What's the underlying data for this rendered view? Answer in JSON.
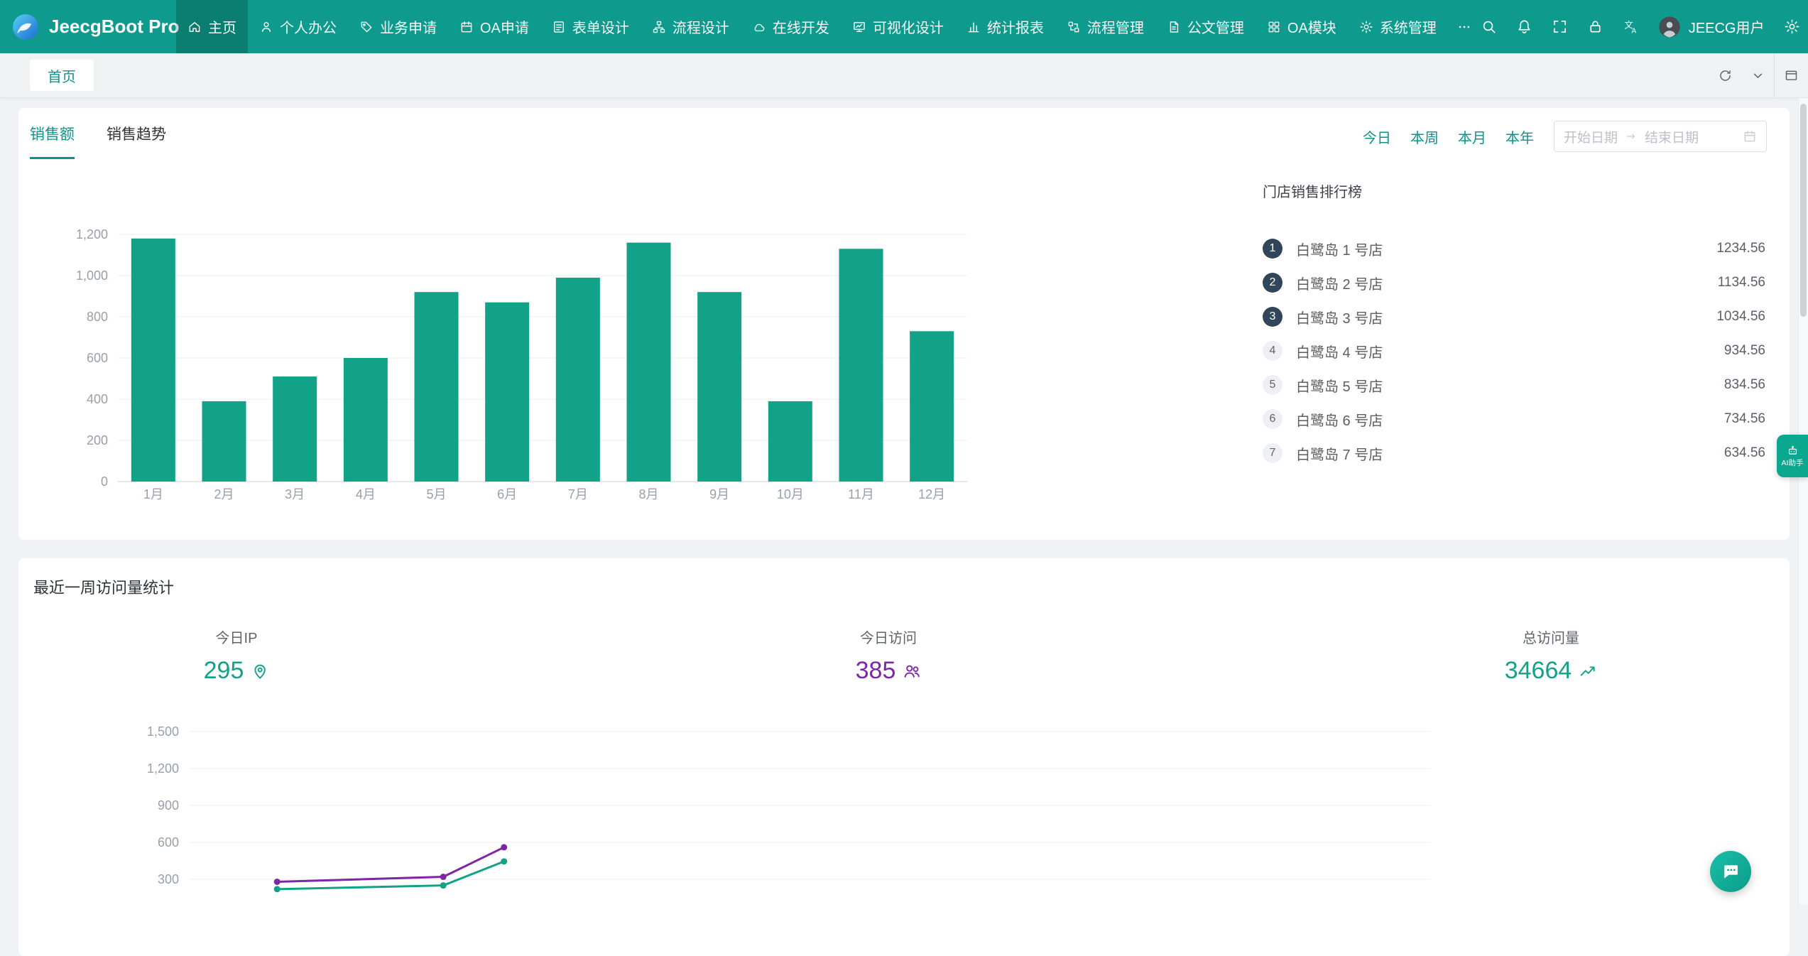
{
  "app": {
    "title": "JeecgBoot Pro"
  },
  "header": {
    "nav_items": [
      {
        "id": "home",
        "label": "主页",
        "icon": "home-icon",
        "active": true
      },
      {
        "id": "personal-office",
        "label": "个人办公",
        "icon": "user-icon",
        "active": false
      },
      {
        "id": "business-apply",
        "label": "业务申请",
        "icon": "tag-icon",
        "active": false
      },
      {
        "id": "oa-apply",
        "label": "OA申请",
        "icon": "calendar-icon",
        "active": false
      },
      {
        "id": "form-design",
        "label": "表单设计",
        "icon": "form-icon",
        "active": false
      },
      {
        "id": "flow-design",
        "label": "流程设计",
        "icon": "flow-icon",
        "active": false
      },
      {
        "id": "online-dev",
        "label": "在线开发",
        "icon": "cloud-icon",
        "active": false
      },
      {
        "id": "visual-design",
        "label": "可视化设计",
        "icon": "monitor-chart-icon",
        "active": false
      },
      {
        "id": "report",
        "label": "统计报表",
        "icon": "bar-chart-icon",
        "active": false
      },
      {
        "id": "flow-manage",
        "label": "流程管理",
        "icon": "deployment-icon",
        "active": false
      },
      {
        "id": "doc-manage",
        "label": "公文管理",
        "icon": "document-icon",
        "active": false
      },
      {
        "id": "oa-module",
        "label": "OA模块",
        "icon": "grid-icon",
        "active": false
      },
      {
        "id": "system-manage",
        "label": "系统管理",
        "icon": "gear-icon",
        "active": false
      },
      {
        "id": "more",
        "label": "",
        "icon": "more-icon",
        "active": false
      }
    ],
    "tools": [
      {
        "id": "search",
        "icon": "search-icon"
      },
      {
        "id": "notifications",
        "icon": "bell-icon"
      },
      {
        "id": "fullscreen",
        "icon": "fullscreen-icon"
      },
      {
        "id": "lock",
        "icon": "lock-icon"
      },
      {
        "id": "language",
        "icon": "translate-icon"
      }
    ],
    "user": {
      "name": "JEECG用户"
    }
  },
  "tabbar": {
    "tabs": [
      {
        "label": "首页",
        "active": true
      }
    ]
  },
  "sales_card": {
    "tabs": [
      {
        "label": "销售额",
        "active": true
      },
      {
        "label": "销售趋势",
        "active": false
      }
    ],
    "quick_ranges": [
      "今日",
      "本周",
      "本月",
      "本年"
    ],
    "date_picker": {
      "start_placeholder": "开始日期",
      "end_placeholder": "结束日期"
    },
    "ranking": {
      "title": "门店销售排行榜",
      "items": [
        {
          "rank": 1,
          "name": "白鹭岛 1 号店",
          "value": "1234.56"
        },
        {
          "rank": 2,
          "name": "白鹭岛 2 号店",
          "value": "1134.56"
        },
        {
          "rank": 3,
          "name": "白鹭岛 3 号店",
          "value": "1034.56"
        },
        {
          "rank": 4,
          "name": "白鹭岛 4 号店",
          "value": "934.56"
        },
        {
          "rank": 5,
          "name": "白鹭岛 5 号店",
          "value": "834.56"
        },
        {
          "rank": 6,
          "name": "白鹭岛 6 号店",
          "value": "734.56"
        },
        {
          "rank": 7,
          "name": "白鹭岛 7 号店",
          "value": "634.56"
        }
      ]
    }
  },
  "chart_data": [
    {
      "type": "bar",
      "title": "",
      "xlabel": "",
      "ylabel": "",
      "categories": [
        "1月",
        "2月",
        "3月",
        "4月",
        "5月",
        "6月",
        "7月",
        "8月",
        "9月",
        "10月",
        "11月",
        "12月"
      ],
      "values": [
        1180,
        390,
        510,
        600,
        920,
        870,
        990,
        1160,
        920,
        390,
        1130,
        730
      ],
      "ylim": [
        0,
        1200
      ],
      "yticks": [
        0,
        200,
        400,
        600,
        800,
        1000,
        1200
      ],
      "bar_color": "#12a287",
      "grid": true,
      "legend": false
    },
    {
      "type": "line",
      "title": "",
      "xlabel": "",
      "ylabel": "",
      "ylim": [
        0,
        1500
      ],
      "yticks": [
        300,
        600,
        900,
        1200,
        1500
      ],
      "grid": true,
      "legend": false,
      "series": [
        {
          "name": "series-purple",
          "color": "#7f26a6",
          "x_frac": [
            0.07,
            0.204,
            0.253
          ],
          "values": [
            280,
            320,
            560
          ]
        },
        {
          "name": "series-teal",
          "color": "#12a287",
          "x_frac": [
            0.07,
            0.204,
            0.253
          ],
          "values": [
            220,
            250,
            445
          ]
        }
      ]
    }
  ],
  "visits_card": {
    "title": "最近一周访问量统计",
    "stats": [
      {
        "id": "today-ip",
        "label": "今日IP",
        "value": "295",
        "icon": "location-pin-icon",
        "color": "#12a287"
      },
      {
        "id": "today-visits",
        "label": "今日访问",
        "value": "385",
        "icon": "team-icon",
        "color": "#7f26a6"
      },
      {
        "id": "total-visits",
        "label": "总访问量",
        "value": "34664",
        "icon": "rise-icon",
        "color": "#12a287"
      }
    ]
  },
  "floating": {
    "ai_assistant_label": "AI助手"
  },
  "colors": {
    "header_bg": "#0e9a8c",
    "accent": "#0d9488",
    "bar": "#12a287",
    "purple": "#7f26a6",
    "rank_top_badge": "#314659"
  }
}
